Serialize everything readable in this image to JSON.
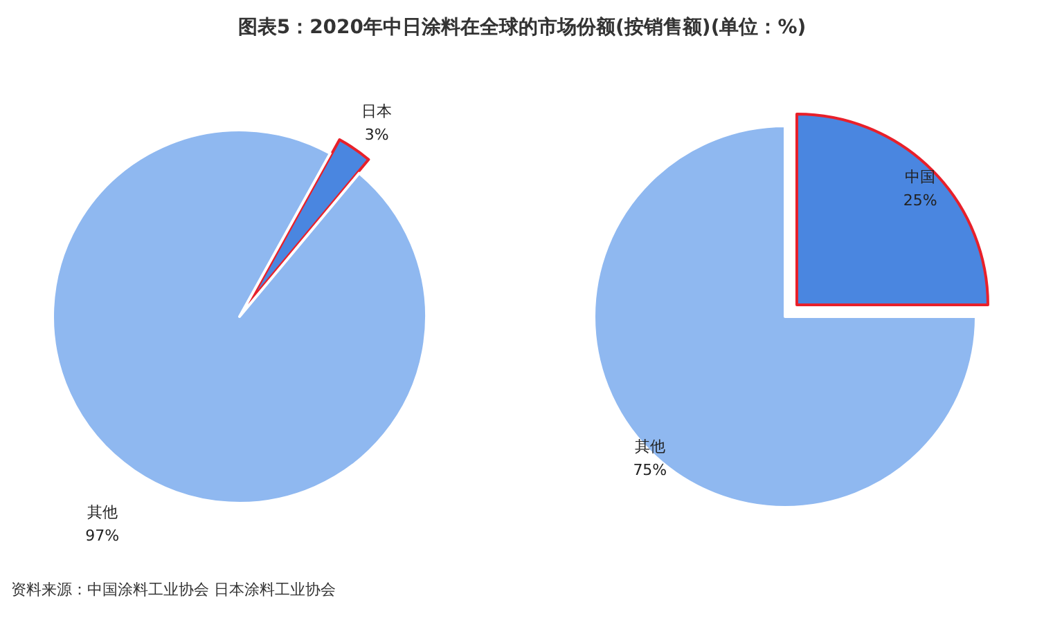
{
  "chart_data": [
    {
      "type": "pie",
      "title": "图表5：2020年中日涂料在全球的市场份额(按销售额)(单位：%)",
      "categories": [
        "日本",
        "其他"
      ],
      "values": [
        3,
        97
      ],
      "value_labels": [
        "3%",
        "97%"
      ],
      "colors": [
        "#4a86e0",
        "#8fb8f0"
      ],
      "annotations": [
        "资料来源：中国涂料工业协会 日本涂料工业协会"
      ]
    },
    {
      "type": "pie",
      "categories": [
        "中国",
        "其他"
      ],
      "values": [
        25,
        75
      ],
      "value_labels": [
        "25%",
        "75%"
      ],
      "colors": [
        "#4a86e0",
        "#8fb8f0"
      ]
    }
  ]
}
